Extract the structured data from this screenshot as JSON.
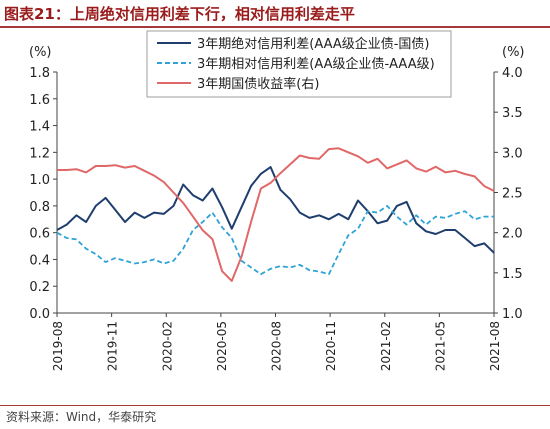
{
  "header": {
    "title": "图表21：上周绝对信用利差下行，相对信用利差走平"
  },
  "footer": {
    "source": "资料来源：Wind，华泰研究"
  },
  "chart_data": {
    "type": "line",
    "y_left": {
      "unit_label": "(%)",
      "ylim": [
        0.0,
        1.8
      ],
      "ticks": [
        "0.0",
        "0.2",
        "0.4",
        "0.6",
        "0.8",
        "1.0",
        "1.2",
        "1.4",
        "1.6",
        "1.8"
      ]
    },
    "y_right": {
      "unit_label": "(%)",
      "ylim": [
        1.0,
        4.0
      ],
      "ticks": [
        "1.0",
        "1.5",
        "2.0",
        "2.5",
        "3.0",
        "3.5",
        "4.0"
      ]
    },
    "x_ticks": [
      "2019-08",
      "2019-11",
      "2020-02",
      "2020-05",
      "2020-08",
      "2020-11",
      "2021-02",
      "2021-05",
      "2021-08"
    ],
    "series": [
      {
        "name": "3年期绝对信用利差(AAA级企业债-国债)",
        "axis": "left",
        "color": "#1f3e6e",
        "style": "solid",
        "points": [
          [
            0,
            0.62
          ],
          [
            1,
            0.66
          ],
          [
            2,
            0.73
          ],
          [
            3,
            0.68
          ],
          [
            4,
            0.8
          ],
          [
            5,
            0.86
          ],
          [
            6,
            0.77
          ],
          [
            7,
            0.68
          ],
          [
            8,
            0.75
          ],
          [
            9,
            0.71
          ],
          [
            10,
            0.75
          ],
          [
            11,
            0.74
          ],
          [
            12,
            0.8
          ],
          [
            13,
            0.96
          ],
          [
            14,
            0.88
          ],
          [
            15,
            0.84
          ],
          [
            16,
            0.93
          ],
          [
            17,
            0.79
          ],
          [
            18,
            0.63
          ],
          [
            19,
            0.79
          ],
          [
            20,
            0.95
          ],
          [
            21,
            1.04
          ],
          [
            22,
            1.09
          ],
          [
            23,
            0.92
          ],
          [
            24,
            0.85
          ],
          [
            25,
            0.75
          ],
          [
            26,
            0.71
          ],
          [
            27,
            0.73
          ],
          [
            28,
            0.7
          ],
          [
            29,
            0.74
          ],
          [
            30,
            0.7
          ],
          [
            31,
            0.84
          ],
          [
            32,
            0.76
          ],
          [
            33,
            0.67
          ],
          [
            34,
            0.69
          ],
          [
            35,
            0.8
          ],
          [
            36,
            0.83
          ],
          [
            37,
            0.67
          ],
          [
            38,
            0.61
          ],
          [
            39,
            0.59
          ],
          [
            40,
            0.62
          ],
          [
            41,
            0.62
          ],
          [
            42,
            0.56
          ],
          [
            43,
            0.5
          ],
          [
            44,
            0.52
          ],
          [
            45,
            0.45
          ]
        ]
      },
      {
        "name": "3年期相对信用利差(AA级企业债-AAA级)",
        "axis": "left",
        "color": "#2fa3d6",
        "style": "dashed",
        "points": [
          [
            0,
            0.6
          ],
          [
            1,
            0.56
          ],
          [
            2,
            0.55
          ],
          [
            3,
            0.48
          ],
          [
            4,
            0.44
          ],
          [
            5,
            0.38
          ],
          [
            6,
            0.41
          ],
          [
            7,
            0.39
          ],
          [
            8,
            0.37
          ],
          [
            9,
            0.38
          ],
          [
            10,
            0.4
          ],
          [
            11,
            0.37
          ],
          [
            12,
            0.39
          ],
          [
            13,
            0.48
          ],
          [
            14,
            0.62
          ],
          [
            15,
            0.68
          ],
          [
            16,
            0.75
          ],
          [
            17,
            0.64
          ],
          [
            18,
            0.56
          ],
          [
            19,
            0.39
          ],
          [
            20,
            0.34
          ],
          [
            21,
            0.29
          ],
          [
            22,
            0.33
          ],
          [
            23,
            0.35
          ],
          [
            24,
            0.34
          ],
          [
            25,
            0.36
          ],
          [
            26,
            0.32
          ],
          [
            27,
            0.31
          ],
          [
            28,
            0.29
          ],
          [
            29,
            0.44
          ],
          [
            30,
            0.58
          ],
          [
            31,
            0.63
          ],
          [
            32,
            0.76
          ],
          [
            33,
            0.75
          ],
          [
            34,
            0.8
          ],
          [
            35,
            0.72
          ],
          [
            36,
            0.66
          ],
          [
            37,
            0.73
          ],
          [
            38,
            0.66
          ],
          [
            39,
            0.72
          ],
          [
            40,
            0.71
          ],
          [
            41,
            0.74
          ],
          [
            42,
            0.76
          ],
          [
            43,
            0.7
          ],
          [
            44,
            0.72
          ],
          [
            45,
            0.72
          ]
        ]
      },
      {
        "name": "3年期国债收益率(右)",
        "axis": "right",
        "color": "#e06868",
        "style": "solid",
        "points": [
          [
            0,
            2.78
          ],
          [
            1,
            2.78
          ],
          [
            2,
            2.79
          ],
          [
            3,
            2.75
          ],
          [
            4,
            2.83
          ],
          [
            5,
            2.83
          ],
          [
            6,
            2.84
          ],
          [
            7,
            2.81
          ],
          [
            8,
            2.83
          ],
          [
            9,
            2.77
          ],
          [
            10,
            2.71
          ],
          [
            11,
            2.63
          ],
          [
            12,
            2.5
          ],
          [
            13,
            2.37
          ],
          [
            14,
            2.2
          ],
          [
            15,
            2.03
          ],
          [
            16,
            1.92
          ],
          [
            17,
            1.52
          ],
          [
            18,
            1.4
          ],
          [
            19,
            1.7
          ],
          [
            20,
            2.14
          ],
          [
            21,
            2.55
          ],
          [
            22,
            2.62
          ],
          [
            23,
            2.74
          ],
          [
            24,
            2.85
          ],
          [
            25,
            2.96
          ],
          [
            26,
            2.93
          ],
          [
            27,
            2.92
          ],
          [
            28,
            3.04
          ],
          [
            29,
            3.05
          ],
          [
            30,
            3.0
          ],
          [
            31,
            2.95
          ],
          [
            32,
            2.87
          ],
          [
            33,
            2.92
          ],
          [
            34,
            2.8
          ],
          [
            35,
            2.85
          ],
          [
            36,
            2.9
          ],
          [
            37,
            2.8
          ],
          [
            38,
            2.76
          ],
          [
            39,
            2.82
          ],
          [
            40,
            2.75
          ],
          [
            41,
            2.77
          ],
          [
            42,
            2.73
          ],
          [
            43,
            2.7
          ],
          [
            44,
            2.58
          ],
          [
            45,
            2.52
          ]
        ]
      }
    ],
    "legend": {
      "placement": "top-center",
      "framed": true
    },
    "grid": false
  }
}
